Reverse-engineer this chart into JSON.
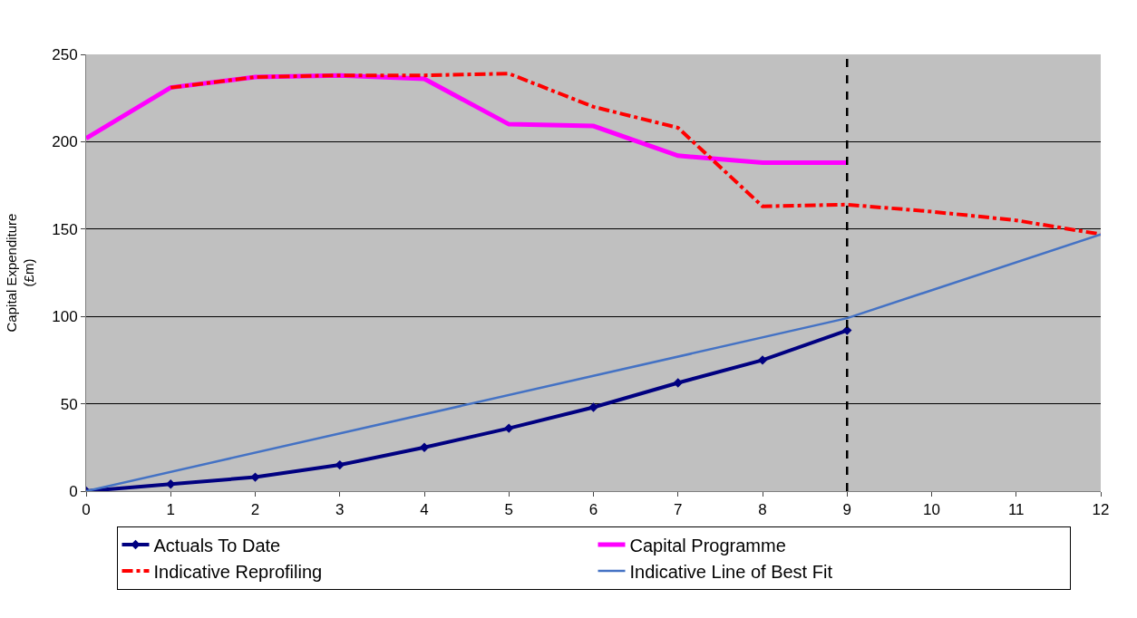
{
  "chart_data": {
    "type": "line",
    "ylabel": "Capital Expenditure\n(£m)",
    "xlim": [
      0,
      12
    ],
    "xticks": [
      0,
      1,
      2,
      3,
      4,
      5,
      6,
      7,
      8,
      9,
      10,
      11,
      12
    ],
    "ylim": [
      0,
      250
    ],
    "yticks": [
      0,
      50,
      100,
      150,
      200,
      250
    ],
    "grid": "y",
    "legend": "bottom",
    "series": [
      {
        "name": "Actuals To Date",
        "color": "#000080",
        "marker": "diamond",
        "line_style": "solid",
        "x": [
          0,
          1,
          2,
          3,
          4,
          5,
          6,
          7,
          8,
          9
        ],
        "values": [
          0,
          4,
          8,
          15,
          25,
          36,
          48,
          62,
          75,
          92
        ]
      },
      {
        "name": "Capital Programme",
        "color": "#ff00ff",
        "marker": "none",
        "line_style": "solid",
        "x": [
          0,
          1,
          2,
          3,
          4,
          5,
          6,
          7,
          8,
          9
        ],
        "values": [
          202,
          231,
          237,
          238,
          236,
          210,
          209,
          192,
          188,
          188
        ]
      },
      {
        "name": "Indicative Reprofiling",
        "color": "#ff0000",
        "marker": "none",
        "line_style": "dashed",
        "x": [
          1,
          2,
          3,
          4,
          5,
          6,
          7,
          8,
          9,
          10,
          11,
          12
        ],
        "values": [
          231,
          237,
          238,
          238,
          239,
          220,
          208,
          163,
          164,
          160,
          155,
          147
        ]
      },
      {
        "name": "Indicative Line of Best Fit",
        "color": "#4472c4",
        "marker": "none",
        "line_style": "solid",
        "x": [
          0,
          9,
          12
        ],
        "values": [
          0,
          99,
          147
        ]
      }
    ],
    "ref_lines": [
      {
        "axis": "x",
        "value": 9,
        "label": null,
        "color": "#000000",
        "line_style": "dashed"
      }
    ]
  }
}
